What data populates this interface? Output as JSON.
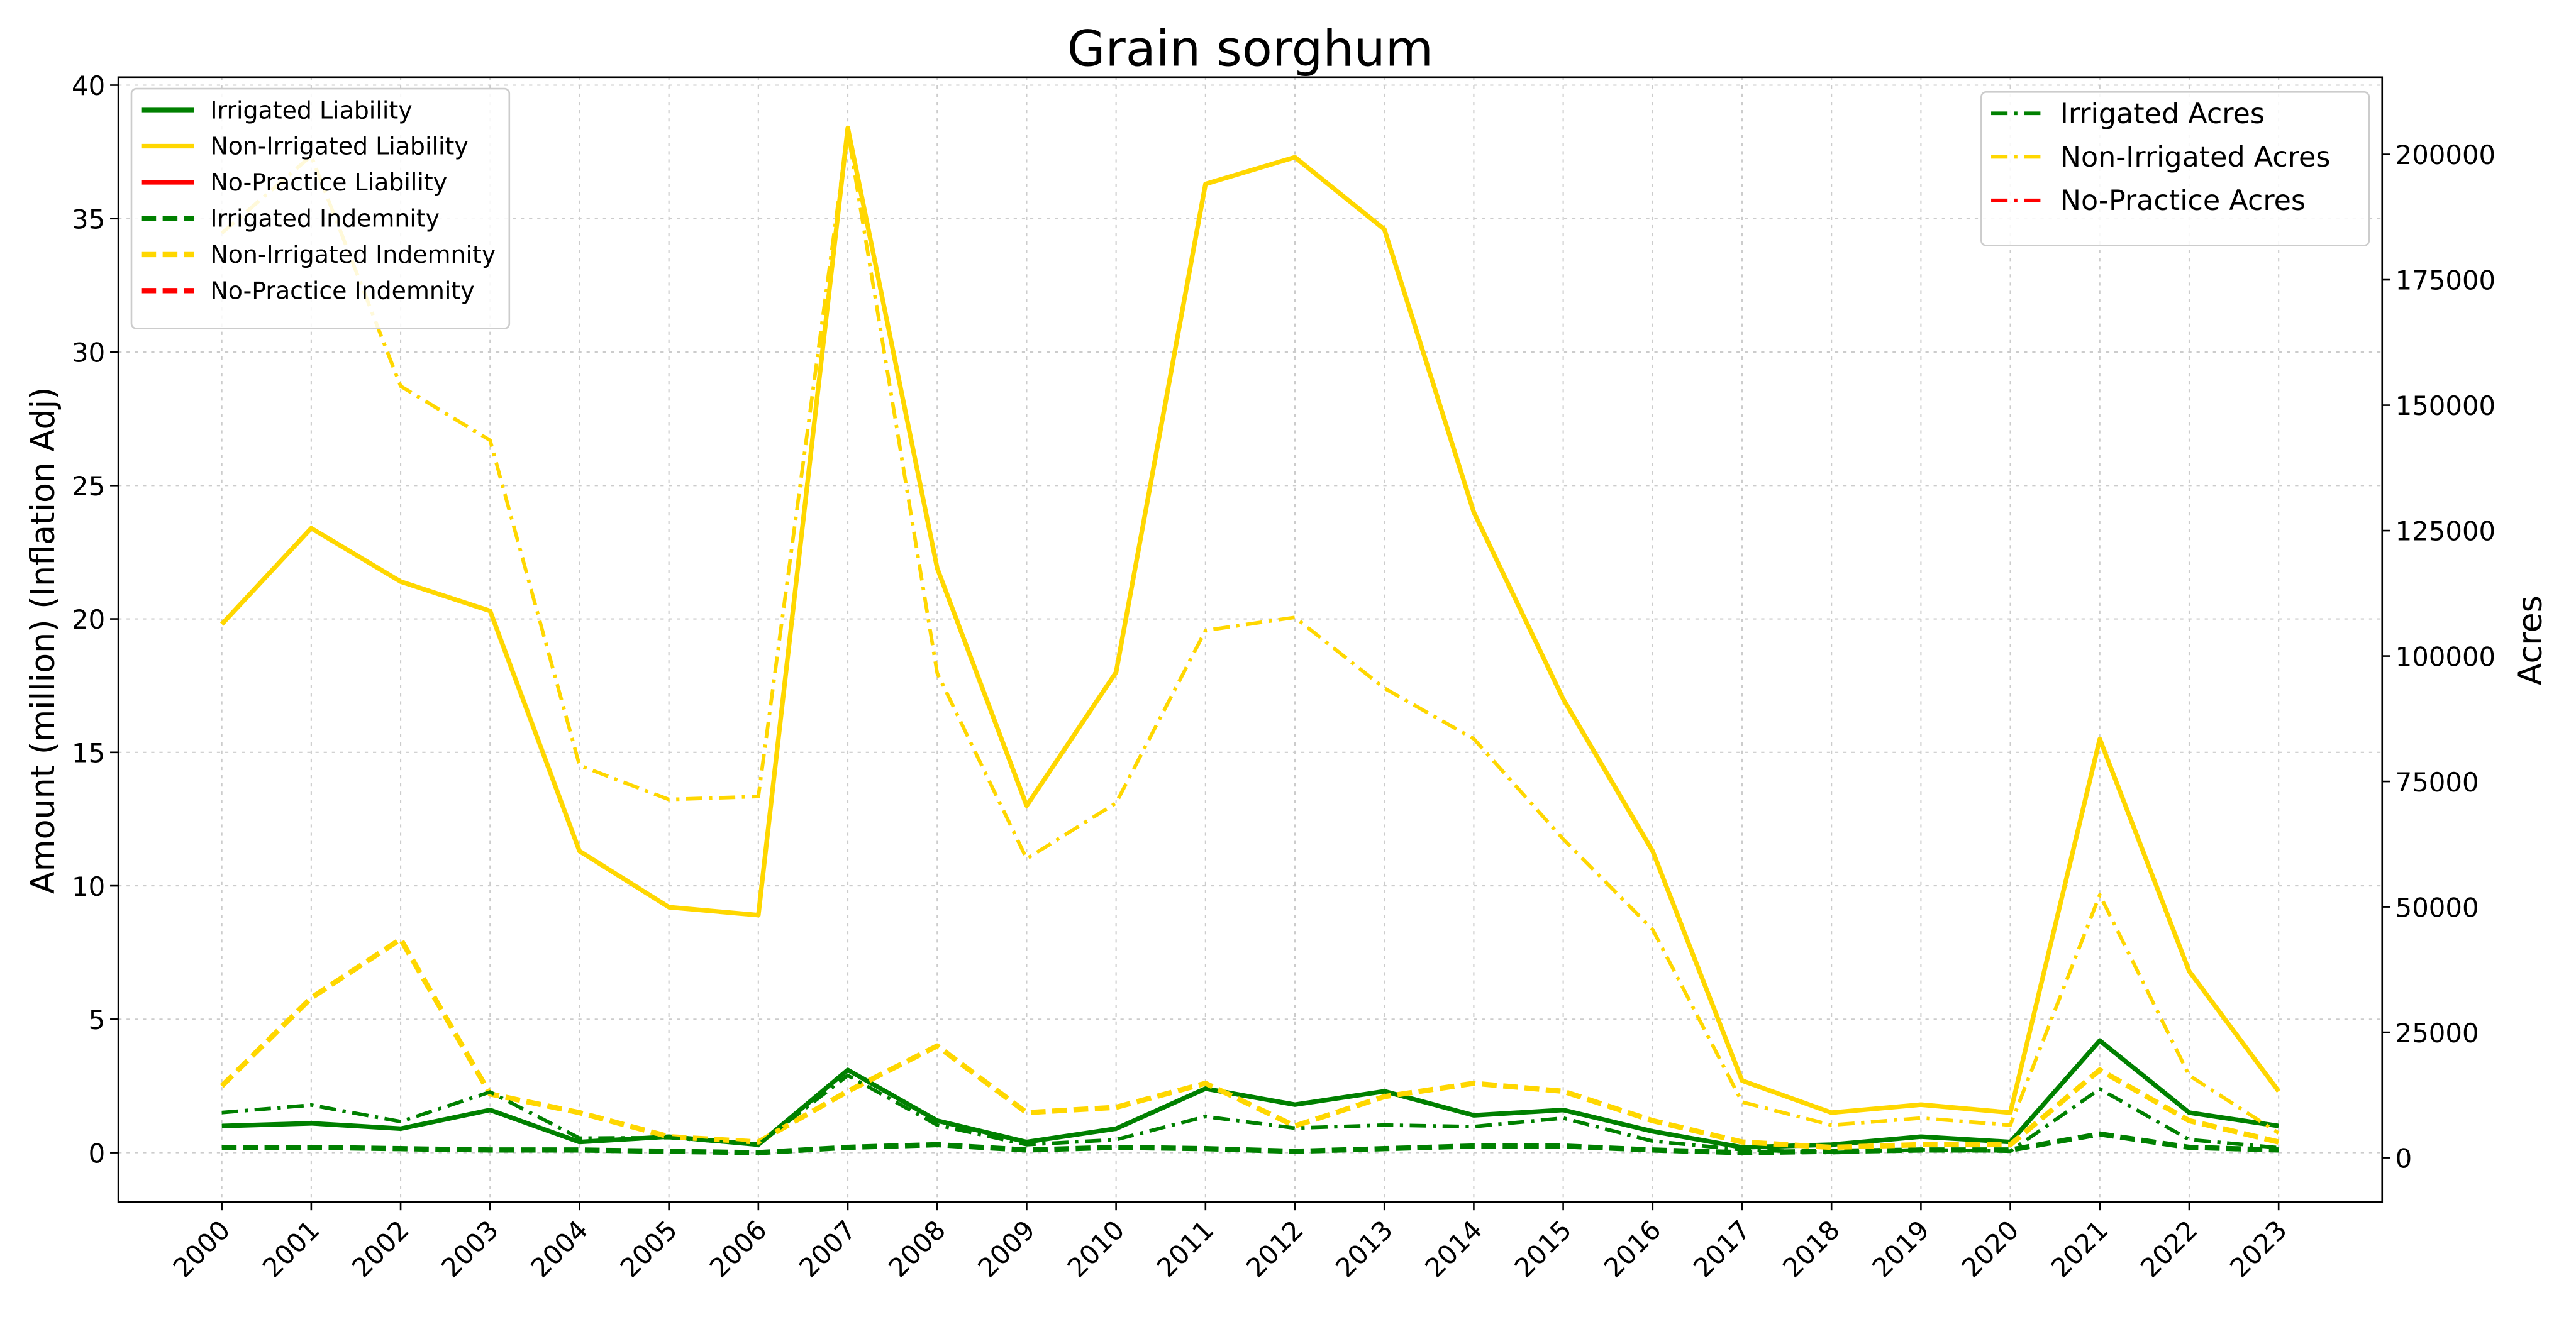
{
  "chart_data": {
    "type": "line",
    "title": "Grain sorghum",
    "ylabel": "Amount (million) (Inflation Adj)",
    "y2label": "Acres",
    "categories": [
      "2000",
      "2001",
      "2002",
      "2003",
      "2004",
      "2005",
      "2006",
      "2007",
      "2008",
      "2009",
      "2010",
      "2011",
      "2012",
      "2013",
      "2014",
      "2015",
      "2016",
      "2017",
      "2018",
      "2019",
      "2020",
      "2021",
      "2022",
      "2023"
    ],
    "ylim": [
      -1.85,
      40.3
    ],
    "yticks": [
      0,
      5,
      10,
      15,
      20,
      25,
      30,
      35,
      40
    ],
    "y2lim": [
      -8838,
      215385
    ],
    "y2ticks": [
      0,
      25000,
      50000,
      75000,
      100000,
      125000,
      150000,
      175000,
      200000
    ],
    "grid": true,
    "legend": "upper left",
    "legend2": "upper right",
    "series": [
      {
        "name": "Irrigated Liability",
        "color": "#008000",
        "linestyle": "solid",
        "values": [
          1.0,
          1.1,
          0.9,
          1.6,
          0.4,
          0.6,
          0.3,
          3.1,
          1.2,
          0.4,
          0.9,
          2.4,
          1.8,
          2.3,
          1.4,
          1.6,
          0.8,
          0.2,
          0.3,
          0.6,
          0.4,
          4.2,
          1.5,
          1.0
        ]
      },
      {
        "name": "Non-Irrigated Liability",
        "color": "#ffd700",
        "linestyle": "solid",
        "values": [
          19.8,
          23.4,
          21.4,
          20.3,
          11.3,
          9.2,
          8.9,
          38.4,
          21.9,
          13.0,
          18.0,
          36.3,
          37.3,
          34.6,
          24.0,
          17.0,
          11.3,
          2.7,
          1.5,
          1.8,
          1.5,
          15.5,
          6.8,
          2.3
        ]
      },
      {
        "name": "No-Practice Liability",
        "color": "#ff0000",
        "linestyle": "solid",
        "values": [
          null,
          null,
          null,
          null,
          null,
          null,
          null,
          null,
          null,
          null,
          null,
          null,
          null,
          null,
          null,
          null,
          null,
          null,
          null,
          null,
          null,
          null,
          null,
          null
        ]
      },
      {
        "name": "Irrigated Indemnity",
        "color": "#008000",
        "linestyle": "dashed",
        "values": [
          0.2,
          0.2,
          0.15,
          0.1,
          0.1,
          0.05,
          0.0,
          0.2,
          0.3,
          0.1,
          0.2,
          0.15,
          0.05,
          0.15,
          0.25,
          0.25,
          0.1,
          0.0,
          0.05,
          0.1,
          0.1,
          0.7,
          0.2,
          0.1
        ]
      },
      {
        "name": "Non-Irrigated Indemnity",
        "color": "#ffd700",
        "linestyle": "dashed",
        "values": [
          2.5,
          5.8,
          8.0,
          2.2,
          1.5,
          0.6,
          0.4,
          2.3,
          4.0,
          1.5,
          1.7,
          2.6,
          1.0,
          2.1,
          2.6,
          2.3,
          1.2,
          0.4,
          0.2,
          0.3,
          0.3,
          3.1,
          1.2,
          0.4
        ]
      },
      {
        "name": "No-Practice Indemnity",
        "color": "#ff0000",
        "linestyle": "dashed",
        "values": [
          null,
          null,
          null,
          null,
          null,
          null,
          null,
          null,
          null,
          null,
          null,
          null,
          null,
          null,
          null,
          null,
          null,
          null,
          null,
          null,
          null,
          null,
          null,
          null
        ]
      },
      {
        "name": "Irrigated Acres",
        "color": "#008000",
        "linestyle": "dashdot",
        "axis": "y2",
        "values": [
          9000,
          10500,
          7200,
          13100,
          3900,
          4000,
          2600,
          16400,
          6500,
          2600,
          3600,
          8200,
          5900,
          6500,
          6200,
          7900,
          3300,
          1600,
          1000,
          1600,
          1300,
          13700,
          3600,
          2000
        ]
      },
      {
        "name": "Non-Irrigated Acres",
        "color": "#ffd700",
        "linestyle": "dashdot",
        "axis": "y2",
        "values": [
          184300,
          199700,
          153800,
          143000,
          78200,
          71400,
          72000,
          204600,
          96600,
          59600,
          70700,
          105100,
          107700,
          93600,
          83500,
          63500,
          45500,
          11100,
          6500,
          7900,
          6500,
          52400,
          16400,
          4900
        ]
      },
      {
        "name": "No-Practice Acres",
        "color": "#ff0000",
        "linestyle": "dashdot",
        "axis": "y2",
        "values": [
          null,
          null,
          null,
          null,
          null,
          null,
          null,
          null,
          null,
          null,
          null,
          null,
          null,
          null,
          null,
          null,
          null,
          null,
          null,
          null,
          null,
          null,
          null,
          null
        ]
      }
    ]
  }
}
